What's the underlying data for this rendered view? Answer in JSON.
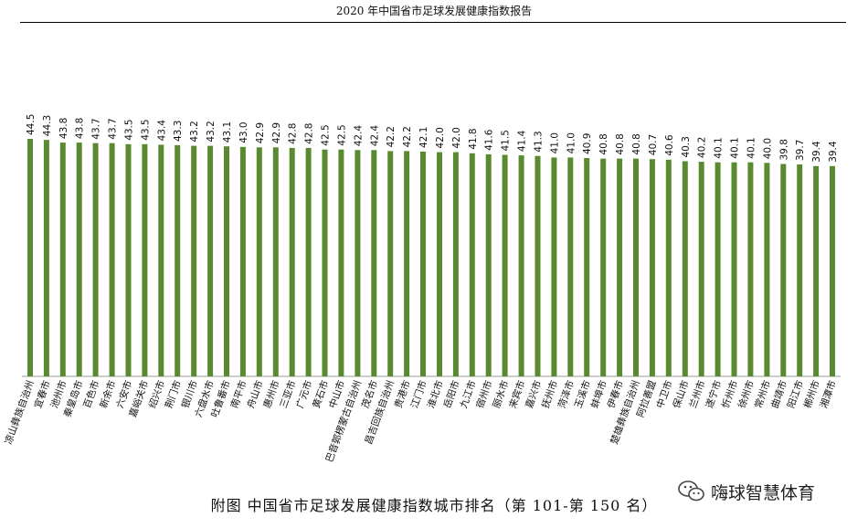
{
  "header": {
    "title": "2020 年中国省市足球发展健康指数报告"
  },
  "caption": "附图  中国省市足球发展健康指数城市排名（第 101-第 150 名）",
  "watermark": {
    "text": "嗨球智慧体育",
    "icon": "wechat-icon"
  },
  "colors": {
    "bar": "#5a8a2f",
    "axis": "#999999"
  },
  "chart_data": {
    "type": "bar",
    "title": "",
    "xlabel": "",
    "ylabel": "",
    "ylim": [
      0,
      44.5
    ],
    "grid": false,
    "categories": [
      "凉山彝族自治州",
      "宜春市",
      "池州市",
      "秦皇岛市",
      "百色市",
      "新余市",
      "六安市",
      "嘉峪关市",
      "绍兴市",
      "荆门市",
      "银川市",
      "六盘水市",
      "吐鲁番市",
      "南平市",
      "舟山市",
      "惠州市",
      "三亚市",
      "广元市",
      "黄石市",
      "中山市",
      "巴音郭楞蒙古自治州",
      "茂名市",
      "昌吉回族自治州",
      "贵港市",
      "江门市",
      "淮北市",
      "岳阳市",
      "九江市",
      "宿州市",
      "丽水市",
      "来宾市",
      "嘉兴市",
      "抚州市",
      "菏泽市",
      "玉溪市",
      "蚌埠市",
      "伊春市",
      "楚雄彝族自治州",
      "阿拉善盟",
      "中卫市",
      "保山市",
      "兰州市",
      "遂宁市",
      "忻州市",
      "徐州市",
      "常州市",
      "曲靖市",
      "阳江市",
      "郴州市",
      "湘潭市"
    ],
    "values": [
      44.5,
      44.3,
      43.8,
      43.8,
      43.7,
      43.7,
      43.5,
      43.5,
      43.4,
      43.3,
      43.2,
      43.2,
      43.1,
      43.0,
      42.9,
      42.9,
      42.8,
      42.8,
      42.5,
      42.5,
      42.4,
      42.4,
      42.2,
      42.2,
      42.1,
      42.0,
      42.0,
      41.8,
      41.6,
      41.5,
      41.4,
      41.3,
      41.0,
      41.0,
      40.9,
      40.8,
      40.8,
      40.8,
      40.7,
      40.6,
      40.3,
      40.2,
      40.1,
      40.1,
      40.1,
      40.0,
      39.8,
      39.7,
      39.4,
      39.4
    ],
    "value_labels": [
      "44.5",
      "44.3",
      "43.8",
      "43.8",
      "43.7",
      "43.7",
      "43.5",
      "43.5",
      "43.4",
      "43.3",
      "43.2",
      "43.2",
      "43.1",
      "43.0",
      "42.9",
      "42.9",
      "42.8",
      "42.8",
      "42.5",
      "42.5",
      "42.4",
      "42.4",
      "42.2",
      "42.2",
      "42.1",
      "42.0",
      "42.0",
      "41.8",
      "41.6",
      "41.5",
      "41.4",
      "41.3",
      "41.0",
      "41.0",
      "40.9",
      "40.8",
      "40.8",
      "40.8",
      "40.7",
      "40.6",
      "40.3",
      "40.2",
      "40.1",
      "40.1",
      "40.1",
      "40.0",
      "39.8",
      "39.7",
      "39.4",
      "39.4"
    ]
  }
}
